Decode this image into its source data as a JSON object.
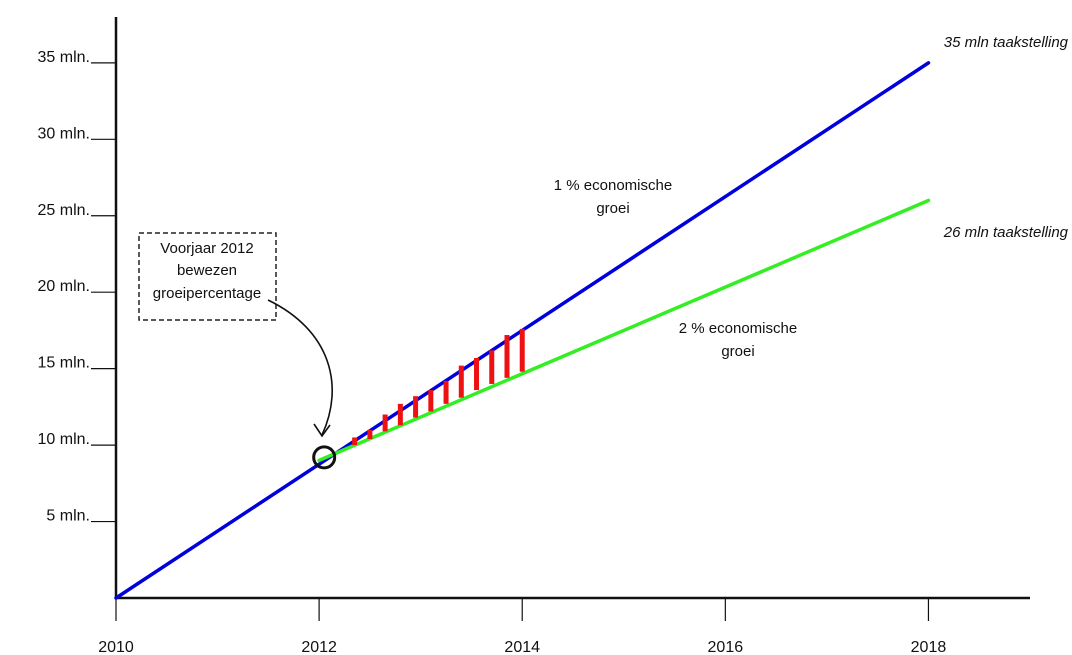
{
  "chart_data": {
    "type": "line",
    "title": "",
    "xlabel": "",
    "ylabel": "",
    "xlim": [
      2010,
      2019
    ],
    "ylim": [
      0,
      38
    ],
    "x_ticks": [
      2010,
      2012,
      2014,
      2016,
      2018
    ],
    "x_tick_labels": [
      "2010",
      "2012",
      "2014",
      "2016",
      "2018"
    ],
    "y_ticks": [
      5,
      10,
      15,
      20,
      25,
      30,
      35
    ],
    "y_tick_labels": [
      "5 mln.",
      "10 mln.",
      "15 mln.",
      "20 mln.",
      "25 mln.",
      "30 mln.",
      "35 mln."
    ],
    "grid": false,
    "series": [
      {
        "color": "#0000dd",
        "x": [
          2010,
          2018
        ],
        "y": [
          0,
          35
        ]
      },
      {
        "color": "#33ee22",
        "x": [
          2012,
          2018
        ],
        "y": [
          9.0,
          26.0
        ]
      }
    ],
    "gap_bars": {
      "color": "#ee1111",
      "x": [
        2012.35,
        2012.5,
        2012.65,
        2012.8,
        2012.95,
        2013.1,
        2013.25,
        2013.4,
        2013.55,
        2013.7,
        2013.85,
        2014.0
      ],
      "low": [
        10.0,
        10.4,
        10.9,
        11.3,
        11.8,
        12.2,
        12.7,
        13.1,
        13.6,
        14.0,
        14.4,
        14.8
      ],
      "high": [
        10.5,
        11.0,
        12.0,
        12.7,
        13.2,
        13.6,
        14.2,
        15.2,
        15.7,
        16.2,
        17.2,
        17.6
      ]
    },
    "marker": {
      "x": 2012.05,
      "y": 9.2
    },
    "annotations": {
      "blue_line_label": [
        "1 % economische",
        "groei"
      ],
      "green_line_label": [
        "2 % economische",
        "groei"
      ],
      "blue_end_label": "35 mln taakstelling",
      "green_end_label": "26 mln taakstelling",
      "callout": [
        "Voorjaar 2012",
        "bewezen",
        "groeipercentage"
      ]
    },
    "colors": {
      "axis": "#111111",
      "callout_border": "#222222",
      "marker": "#111111"
    }
  }
}
